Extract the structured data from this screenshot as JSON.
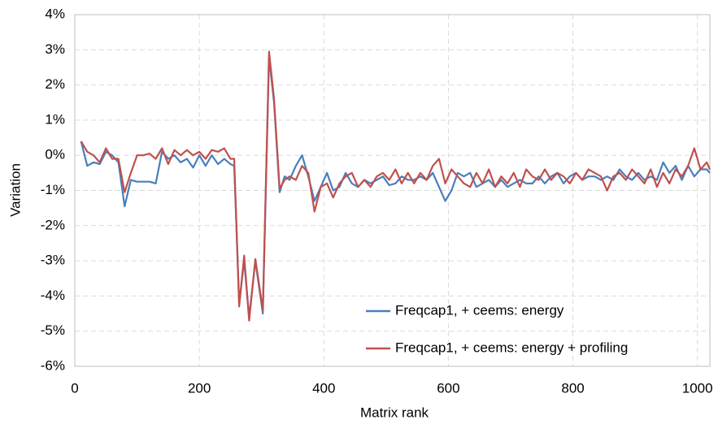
{
  "chart_data": {
    "type": "line",
    "x_label": "Matrix rank",
    "y_label": "Variation",
    "x": [
      10,
      20,
      30,
      40,
      50,
      60,
      70,
      80,
      90,
      100,
      110,
      120,
      130,
      140,
      150,
      160,
      170,
      180,
      190,
      200,
      210,
      220,
      230,
      240,
      250,
      256,
      264,
      272,
      280,
      290,
      302,
      312,
      320,
      329,
      337,
      345,
      355,
      365,
      375,
      385,
      395,
      405,
      415,
      425,
      435,
      445,
      455,
      465,
      475,
      485,
      495,
      505,
      515,
      525,
      535,
      545,
      555,
      565,
      575,
      585,
      595,
      605,
      615,
      625,
      635,
      645,
      655,
      665,
      675,
      685,
      695,
      705,
      715,
      725,
      735,
      745,
      755,
      765,
      775,
      785,
      795,
      805,
      815,
      825,
      835,
      845,
      855,
      865,
      875,
      885,
      895,
      905,
      915,
      925,
      935,
      945,
      955,
      965,
      975,
      985,
      995,
      1005,
      1015,
      1020
    ],
    "series": [
      {
        "name": "Freqcap1, + ceems: energy",
        "color": "#4a7ebb",
        "values": [
          0.4,
          -0.3,
          -0.2,
          -0.25,
          0.1,
          0.0,
          -0.2,
          -1.45,
          -0.7,
          -0.75,
          -0.75,
          -0.75,
          -0.8,
          0.1,
          -0.1,
          0.0,
          -0.2,
          -0.1,
          -0.35,
          0.0,
          -0.3,
          0.0,
          -0.25,
          -0.1,
          -0.25,
          -0.3,
          -4.2,
          -3.0,
          -4.6,
          -3.0,
          -4.5,
          2.8,
          1.5,
          -1.05,
          -0.6,
          -0.7,
          -0.3,
          0.0,
          -0.6,
          -1.3,
          -0.9,
          -0.5,
          -1.0,
          -0.9,
          -0.5,
          -0.8,
          -0.9,
          -0.7,
          -0.8,
          -0.7,
          -0.6,
          -0.85,
          -0.8,
          -0.6,
          -0.7,
          -0.7,
          -0.6,
          -0.7,
          -0.5,
          -0.9,
          -1.3,
          -1.0,
          -0.5,
          -0.6,
          -0.5,
          -0.9,
          -0.8,
          -0.7,
          -0.9,
          -0.7,
          -0.9,
          -0.8,
          -0.7,
          -0.8,
          -0.8,
          -0.6,
          -0.8,
          -0.6,
          -0.5,
          -0.8,
          -0.6,
          -0.5,
          -0.7,
          -0.6,
          -0.6,
          -0.7,
          -0.6,
          -0.7,
          -0.4,
          -0.6,
          -0.7,
          -0.5,
          -0.7,
          -0.6,
          -0.7,
          -0.2,
          -0.5,
          -0.3,
          -0.7,
          -0.3,
          -0.6,
          -0.4,
          -0.4,
          -0.5
        ]
      },
      {
        "name": "Freqcap1, + ceems: energy + profiling",
        "color": "#c0504d",
        "values": [
          0.4,
          0.1,
          0.0,
          -0.2,
          0.2,
          -0.1,
          -0.1,
          -1.05,
          -0.5,
          0.0,
          0.0,
          0.05,
          -0.1,
          0.2,
          -0.25,
          0.15,
          0.0,
          0.15,
          0.0,
          0.1,
          -0.1,
          0.15,
          0.1,
          0.2,
          -0.1,
          -0.1,
          -4.3,
          -2.85,
          -4.7,
          -2.95,
          -4.4,
          2.95,
          1.6,
          -0.95,
          -0.7,
          -0.6,
          -0.7,
          -0.3,
          -0.5,
          -1.6,
          -0.9,
          -0.8,
          -1.2,
          -0.8,
          -0.6,
          -0.5,
          -0.9,
          -0.7,
          -0.9,
          -0.6,
          -0.5,
          -0.7,
          -0.4,
          -0.8,
          -0.5,
          -0.8,
          -0.5,
          -0.7,
          -0.3,
          -0.1,
          -0.8,
          -0.4,
          -0.6,
          -0.8,
          -0.9,
          -0.5,
          -0.8,
          -0.4,
          -0.9,
          -0.6,
          -0.8,
          -0.5,
          -0.9,
          -0.4,
          -0.6,
          -0.7,
          -0.4,
          -0.7,
          -0.5,
          -0.6,
          -0.8,
          -0.5,
          -0.7,
          -0.4,
          -0.5,
          -0.6,
          -1.0,
          -0.6,
          -0.5,
          -0.7,
          -0.4,
          -0.6,
          -0.8,
          -0.4,
          -0.9,
          -0.5,
          -0.8,
          -0.4,
          -0.6,
          -0.3,
          0.2,
          -0.4,
          -0.2,
          -0.4
        ]
      }
    ],
    "xlim": [
      0,
      1020
    ],
    "xticks": [
      0,
      200,
      400,
      600,
      800,
      1000
    ],
    "ylim": [
      -6,
      4
    ],
    "yticks": [
      {
        "value": -6,
        "label": "-6%"
      },
      {
        "value": -5,
        "label": "-5%"
      },
      {
        "value": -4,
        "label": "-4%"
      },
      {
        "value": -3,
        "label": "-3%"
      },
      {
        "value": -2,
        "label": "-2%"
      },
      {
        "value": -1,
        "label": "-1%"
      },
      {
        "value": 0,
        "label": "0%"
      },
      {
        "value": 1,
        "label": "1%"
      },
      {
        "value": 2,
        "label": "2%"
      },
      {
        "value": 3,
        "label": "3%"
      },
      {
        "value": 4,
        "label": "4%"
      }
    ],
    "grid": true,
    "legend": "lower right"
  }
}
